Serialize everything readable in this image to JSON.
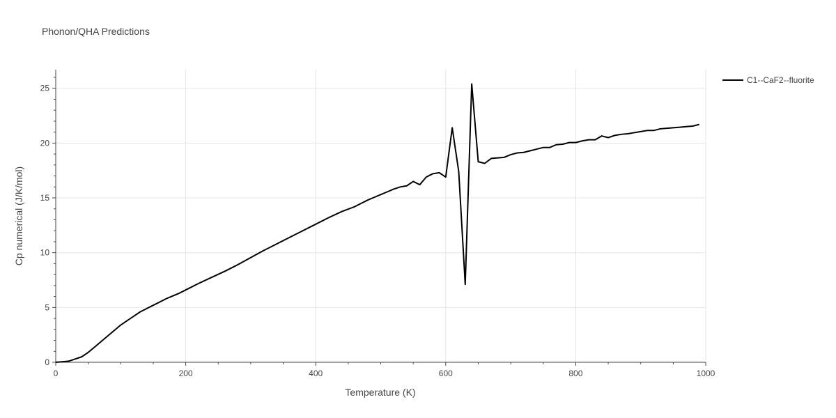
{
  "chart_data": {
    "type": "line",
    "title": "Phonon/QHA Predictions",
    "xlabel": "Temperature (K)",
    "ylabel": "Cp numerical (J/K/mol)",
    "xlim": [
      0,
      1000
    ],
    "ylim": [
      0,
      26.7
    ],
    "xticks": [
      0,
      200,
      400,
      600,
      800,
      1000
    ],
    "yticks": [
      0,
      5,
      10,
      15,
      20,
      25
    ],
    "grid": true,
    "legend_position": "top-right",
    "colors": {
      "line": "#000000",
      "grid": "#e5e5e5",
      "axis": "#444444"
    },
    "series": [
      {
        "name": "C1--CaF2--fluorite",
        "x": [
          0,
          10,
          20,
          30,
          40,
          50,
          60,
          70,
          80,
          90,
          100,
          110,
          120,
          130,
          140,
          150,
          160,
          170,
          180,
          190,
          200,
          220,
          240,
          260,
          280,
          300,
          320,
          340,
          360,
          380,
          400,
          420,
          440,
          460,
          470,
          480,
          490,
          500,
          510,
          520,
          530,
          540,
          550,
          560,
          570,
          580,
          590,
          600,
          610,
          620,
          630,
          640,
          650,
          660,
          670,
          680,
          690,
          700,
          710,
          720,
          730,
          740,
          750,
          760,
          770,
          780,
          790,
          800,
          810,
          820,
          830,
          840,
          850,
          860,
          870,
          880,
          890,
          900,
          910,
          920,
          930,
          940,
          950,
          960,
          970,
          980,
          990
        ],
        "y": [
          0,
          0.05,
          0.1,
          0.3,
          0.5,
          0.9,
          1.4,
          1.9,
          2.4,
          2.9,
          3.4,
          3.8,
          4.2,
          4.6,
          4.9,
          5.2,
          5.5,
          5.8,
          6.05,
          6.3,
          6.6,
          7.2,
          7.75,
          8.3,
          8.9,
          9.55,
          10.2,
          10.8,
          11.4,
          12.0,
          12.6,
          13.2,
          13.75,
          14.2,
          14.5,
          14.8,
          15.05,
          15.3,
          15.55,
          15.8,
          16.0,
          16.1,
          16.5,
          16.2,
          16.9,
          17.2,
          17.3,
          16.9,
          21.4,
          17.4,
          7.1,
          25.4,
          18.3,
          18.15,
          18.6,
          18.65,
          18.7,
          18.95,
          19.1,
          19.15,
          19.3,
          19.45,
          19.6,
          19.6,
          19.85,
          19.9,
          20.05,
          20.05,
          20.2,
          20.3,
          20.3,
          20.65,
          20.5,
          20.7,
          20.8,
          20.85,
          20.95,
          21.05,
          21.15,
          21.15,
          21.3,
          21.35,
          21.4,
          21.45,
          21.5,
          21.55,
          21.7
        ]
      }
    ]
  }
}
